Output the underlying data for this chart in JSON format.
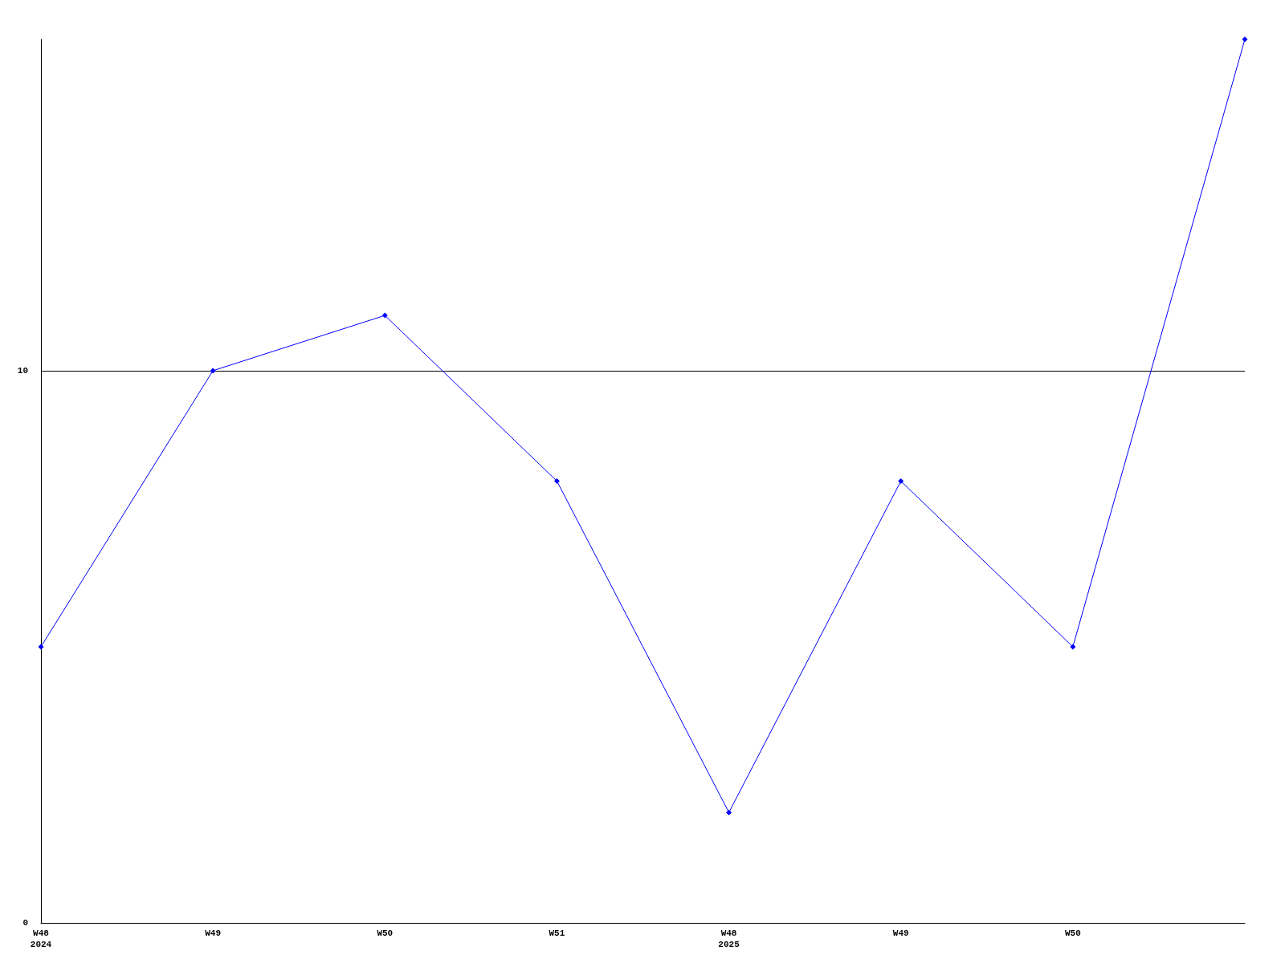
{
  "chart_data": {
    "type": "line",
    "categories": [
      "W48\n2024",
      "W49",
      "W50",
      "W51",
      "W48\n2025",
      "W49",
      "W50",
      null
    ],
    "series": [
      {
        "color": "#0000ff",
        "values": [
          5,
          10,
          11,
          8,
          2,
          8,
          5,
          16
        ]
      }
    ],
    "ylim": [
      0,
      16
    ],
    "yticks": [
      0,
      10
    ],
    "grid": "y",
    "marker": "diamond",
    "line_style": "solid"
  }
}
